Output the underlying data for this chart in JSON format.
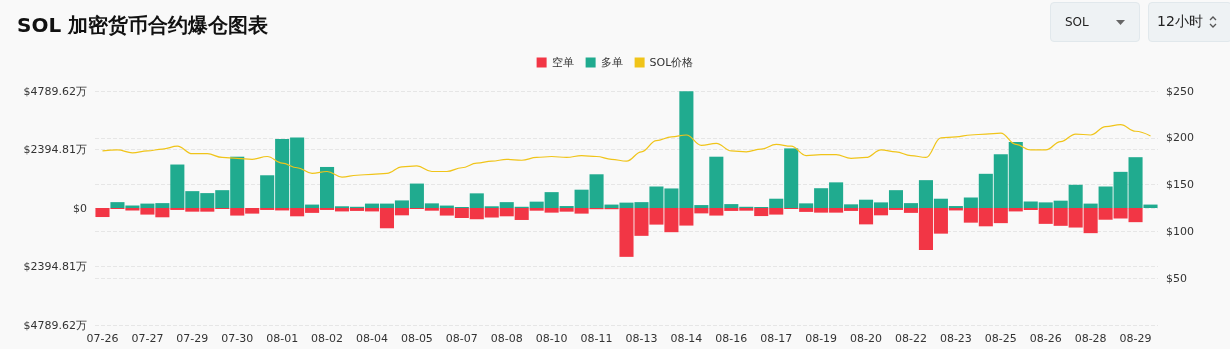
{
  "chart_data": {
    "type": "bar",
    "title": "SOL 加密货币合约爆仓图表",
    "annotations": [
      "SOL",
      "12小时"
    ],
    "categories": [
      "07-26",
      null,
      null,
      "07-27",
      null,
      null,
      "07-29",
      null,
      null,
      "07-30",
      null,
      null,
      "08-01",
      null,
      null,
      "08-02",
      null,
      null,
      "08-04",
      null,
      null,
      "08-05",
      null,
      null,
      "08-07",
      null,
      null,
      "08-08",
      null,
      null,
      "08-10",
      null,
      null,
      "08-11",
      null,
      null,
      "08-13",
      null,
      null,
      "08-14",
      null,
      null,
      "08-16",
      null,
      null,
      "08-17",
      null,
      null,
      "08-19",
      null,
      null,
      "08-20",
      null,
      null,
      "08-22",
      null,
      null,
      "08-23",
      null,
      null,
      "08-25",
      null,
      null,
      "08-26",
      null,
      null,
      "08-28",
      null,
      null,
      "08-29",
      null
    ],
    "stacked": true,
    "series": [
      {
        "name": "空单",
        "color": "#f23645",
        "values": [
          -370,
          -40,
          -100,
          -270,
          -380,
          -80,
          -150,
          -150,
          -40,
          -310,
          -230,
          -80,
          -100,
          -340,
          -200,
          -80,
          -140,
          -120,
          -140,
          -830,
          -300,
          -40,
          -110,
          -310,
          -410,
          -460,
          -390,
          -340,
          -490,
          -110,
          -190,
          -150,
          -230,
          -50,
          -50,
          -2000,
          -1140,
          -680,
          -990,
          -720,
          -220,
          -310,
          -120,
          -110,
          -330,
          -270,
          -40,
          -160,
          -190,
          -190,
          -120,
          -670,
          -300,
          -80,
          -200,
          -1720,
          -1050,
          -100,
          -600,
          -750,
          -620,
          -140,
          -80,
          -650,
          -730,
          -800,
          -1030,
          -480,
          -430,
          -580,
          0
        ]
      },
      {
        "name": "多单",
        "color": "#20ab8f",
        "values": [
          0,
          240,
          100,
          180,
          200,
          1780,
          690,
          610,
          730,
          2100,
          0,
          1340,
          2820,
          2890,
          140,
          1680,
          70,
          50,
          180,
          180,
          310,
          1000,
          190,
          100,
          40,
          600,
          70,
          240,
          50,
          260,
          650,
          80,
          750,
          1380,
          140,
          220,
          240,
          880,
          800,
          4780,
          120,
          2100,
          160,
          50,
          40,
          380,
          2440,
          190,
          810,
          1050,
          150,
          340,
          230,
          730,
          200,
          1140,
          380,
          80,
          430,
          1400,
          2200,
          2700,
          270,
          230,
          300,
          950,
          180,
          880,
          1480,
          2080,
          140
        ]
      },
      {
        "name": "SOL价格",
        "type": "line",
        "axis": "y2",
        "color": "#f0c419",
        "values": [
          186,
          187,
          184,
          186,
          188,
          191,
          183,
          183,
          179,
          178,
          177,
          180,
          173,
          168,
          162,
          164,
          158,
          160,
          161,
          162,
          169,
          170,
          164,
          164,
          168,
          173,
          175,
          177,
          176,
          179,
          180,
          179,
          181,
          180,
          177,
          175,
          185,
          197,
          201,
          203,
          192,
          194,
          186,
          185,
          188,
          193,
          191,
          181,
          182,
          182,
          178,
          179,
          187,
          185,
          181,
          179,
          200,
          201,
          203,
          204,
          205,
          193,
          187,
          187,
          196,
          204,
          203,
          212,
          214,
          207,
          202
        ]
      }
    ],
    "ylim": [
      -4789.62,
      4789.62
    ],
    "yticks": [
      {
        "value": -4789.62,
        "label": "$4789.62万"
      },
      {
        "value": -2394.81,
        "label": "$2394.81万"
      },
      {
        "value": 0,
        "label": "$0"
      },
      {
        "value": 2394.81,
        "label": "$2394.81万"
      },
      {
        "value": 4789.62,
        "label": "$4789.62万"
      }
    ],
    "y2lim": [
      0,
      250
    ],
    "y2ticks": [
      {
        "value": 50,
        "label": "$50"
      },
      {
        "value": 100,
        "label": "$100"
      },
      {
        "value": 150,
        "label": "$150"
      },
      {
        "value": 200,
        "label": "$200"
      },
      {
        "value": 250,
        "label": "$250"
      }
    ],
    "grid": "y",
    "legend": "top",
    "marker": "none",
    "line_style": "solid"
  }
}
